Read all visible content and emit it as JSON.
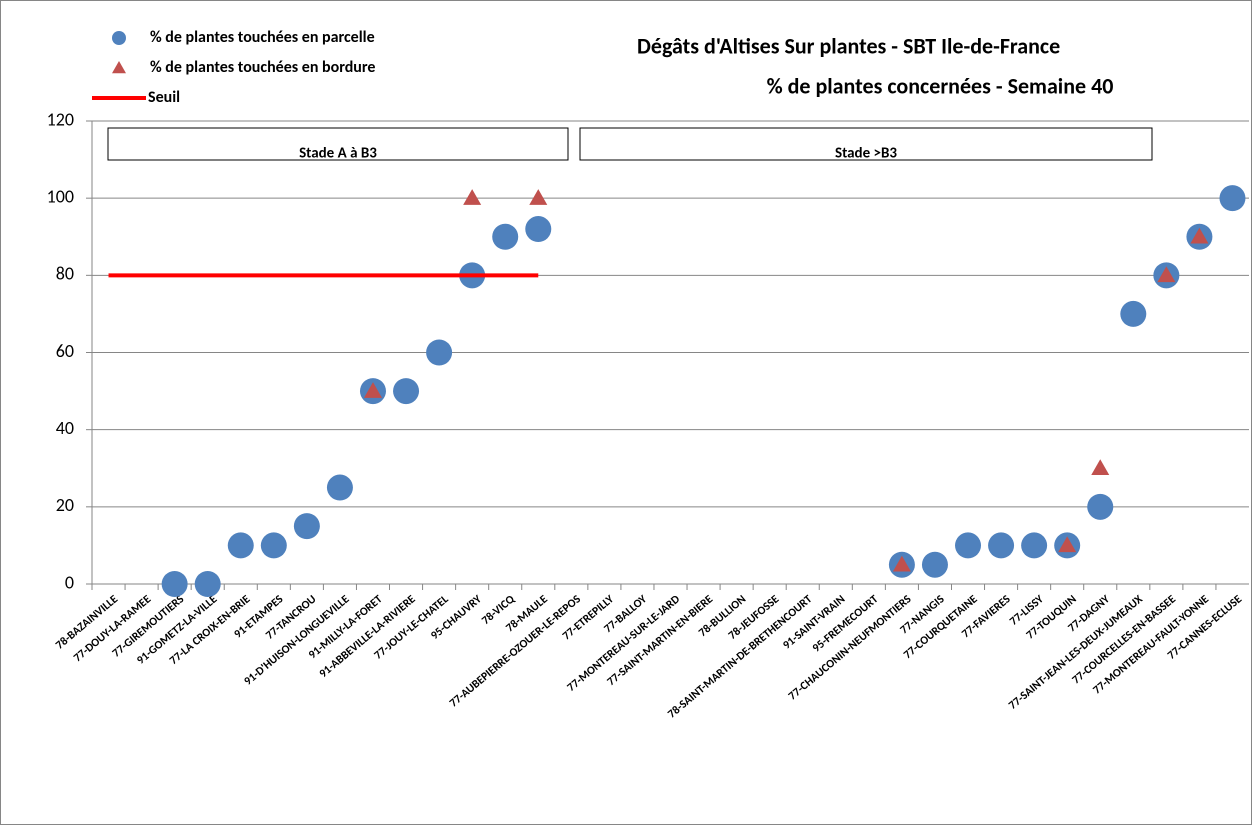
{
  "chart_data": {
    "type": "scatter",
    "title": "Dégâts d'Altises Sur plantes - SBT Ile-de-France",
    "subtitle": "% de plantes concernées - Semaine 40",
    "categories": [
      "78-BAZAINVILLE",
      "77-DOUY-LA-RAMEE",
      "77-GIREMOUTIERS",
      "91-GOMETZ-LA-VILLE",
      "77-LA CROIX-EN-BRIE",
      "91-ETAMPES",
      "77-TANCROU",
      "91-D'HUISON-LONGUEVILLE",
      "91-MILLY-LA-FORET",
      "91-ABBEVILLE-LA-RIVIERE",
      "77-JOUY-LE-CHATEL",
      "95-CHAUVRY",
      "78-VICQ",
      "78-MAULE",
      "77-AUBEPIERRE-OZOUER-LE-REPOS",
      "77-ETREPILLY",
      "77-BALLOY",
      "77-MONTEREAU-SUR-LE-JARD",
      "77-SAINT-MARTIN-EN-BIERE",
      "78-BULLION",
      "78-JEUFOSSE",
      "78-SAINT-MARTIN-DE-BRETHENCOURT",
      "91-SAINT-VRAIN",
      "95-FREMECOURT",
      "77-CHAUCONIN-NEUFMONTIERS",
      "77-NANGIS",
      "77-COURQUETAINE",
      "77-FAVIERES",
      "77-LISSY",
      "77-TOUQUIN",
      "77-DAGNY",
      "77-SAINT-JEAN-LES-DEUX-JUMEAUX",
      "77-COURCELLES-EN-BASSEE",
      "77-MONTEREAU-FAULT-YONNE",
      "77-CANNES-ECLUSE"
    ],
    "series": [
      {
        "name": "% de plantes touchées en parcelle",
        "color": "#4f81bd",
        "marker": "circle",
        "values": [
          null,
          null,
          0,
          0,
          10,
          10,
          15,
          25,
          50,
          50,
          60,
          80,
          90,
          92,
          null,
          null,
          null,
          null,
          null,
          null,
          null,
          null,
          null,
          null,
          5,
          5,
          10,
          10,
          10,
          10,
          20,
          70,
          80,
          90,
          100
        ]
      },
      {
        "name": "% de plantes touchées en bordure",
        "color": "#c0504d",
        "marker": "triangle",
        "values": [
          null,
          null,
          null,
          null,
          null,
          null,
          null,
          null,
          50,
          null,
          null,
          100,
          null,
          100,
          null,
          null,
          null,
          null,
          null,
          null,
          null,
          null,
          null,
          null,
          5,
          null,
          null,
          null,
          null,
          10,
          30,
          null,
          80,
          90,
          null
        ]
      },
      {
        "name": "Seuil",
        "color": "#ff0000",
        "marker": "line",
        "values": [
          80,
          80,
          80,
          80,
          80,
          80,
          80,
          80,
          80,
          80,
          80,
          80,
          80,
          80,
          null,
          null,
          null,
          null,
          null,
          null,
          null,
          null,
          null,
          null,
          null,
          null,
          null,
          null,
          null,
          null,
          null,
          null,
          null,
          null,
          null
        ]
      }
    ],
    "annotations": [
      "Stade A à B3",
      "Stade >B3"
    ],
    "ylim": [
      0,
      120
    ],
    "yticks": [
      0,
      20,
      40,
      60,
      80,
      100,
      120
    ],
    "grid": true,
    "legend": "top-left"
  }
}
